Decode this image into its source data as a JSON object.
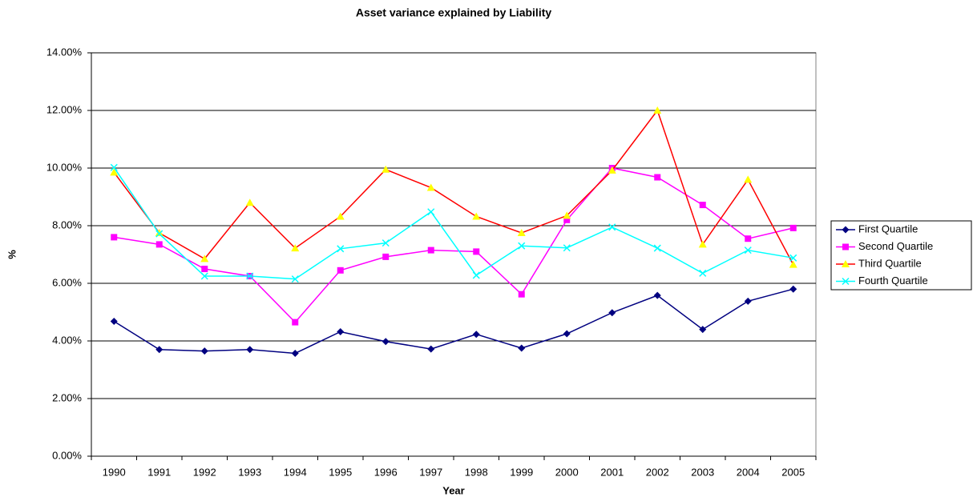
{
  "chart_data": {
    "type": "line",
    "title": "Asset variance explained by Liability",
    "x_label": "Year",
    "y_label": "%",
    "categories": [
      "1990",
      "1991",
      "1992",
      "1993",
      "1994",
      "1995",
      "1996",
      "1997",
      "1998",
      "1999",
      "2000",
      "2001",
      "2002",
      "2003",
      "2004",
      "2005"
    ],
    "series": [
      {
        "name": "First Quartile",
        "color": "#000080",
        "marker": "diamond",
        "marker_color": "#000080",
        "values": [
          4.68,
          3.7,
          3.65,
          3.7,
          3.57,
          4.32,
          3.98,
          3.72,
          4.23,
          3.75,
          4.25,
          4.98,
          5.58,
          4.4,
          5.38,
          5.8
        ]
      },
      {
        "name": "Second Quartile",
        "color": "#ff00ff",
        "marker": "square",
        "marker_color": "#ff00ff",
        "values": [
          7.6,
          7.35,
          6.5,
          6.25,
          4.65,
          6.45,
          6.92,
          7.15,
          7.1,
          5.62,
          8.2,
          10.0,
          9.68,
          8.72,
          7.55,
          7.92
        ]
      },
      {
        "name": "Third Quartile",
        "color": "#ff0000",
        "marker": "triangle",
        "marker_color": "#ffff00",
        "values": [
          9.85,
          7.75,
          6.85,
          8.8,
          7.22,
          8.32,
          9.95,
          9.32,
          8.32,
          7.75,
          8.35,
          9.92,
          12.0,
          7.35,
          9.6,
          6.65
        ]
      },
      {
        "name": "Fourth Quartile",
        "color": "#00ffff",
        "marker": "x",
        "marker_color": "#00ffff",
        "values": [
          10.02,
          7.72,
          6.25,
          6.25,
          6.15,
          7.2,
          7.4,
          8.48,
          6.28,
          7.3,
          7.23,
          7.95,
          7.22,
          6.35,
          7.15,
          6.88
        ]
      }
    ],
    "ylim": [
      0,
      14
    ],
    "yticks": [
      {
        "value": 0,
        "label": "0.00%"
      },
      {
        "value": 2,
        "label": "2.00%"
      },
      {
        "value": 4,
        "label": "4.00%"
      },
      {
        "value": 6,
        "label": "6.00%"
      },
      {
        "value": 8,
        "label": "8.00%"
      },
      {
        "value": 10,
        "label": "10.00%"
      },
      {
        "value": 12,
        "label": "12.00%"
      },
      {
        "value": 14,
        "label": "14.00%"
      }
    ],
    "grid": true,
    "legend": "right"
  }
}
